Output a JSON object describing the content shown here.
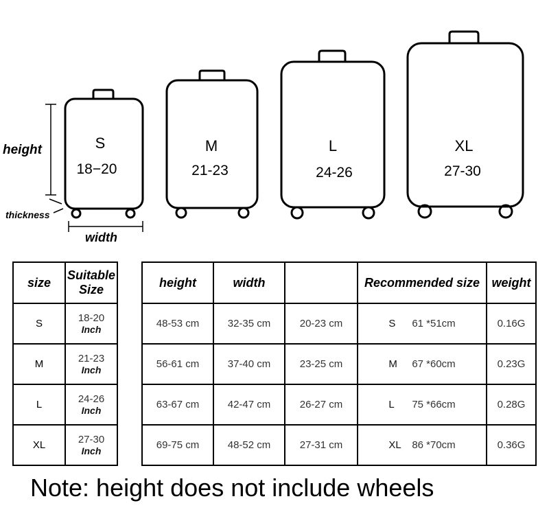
{
  "dimension_labels": {
    "height": "height",
    "thickness": "thickness",
    "width": "width"
  },
  "suitcases": [
    {
      "size": "S",
      "range": "18−20"
    },
    {
      "size": "M",
      "range": "21-23"
    },
    {
      "size": "L",
      "range": "24-26"
    },
    {
      "size": "XL",
      "range": "27-30"
    }
  ],
  "table_left": {
    "headers": {
      "size": "size",
      "suitable_line1": "Suitable",
      "suitable_line2": "Size"
    },
    "rows": [
      {
        "size": "S",
        "range": "18-20",
        "unit": "Inch"
      },
      {
        "size": "M",
        "range": "21-23",
        "unit": "Inch"
      },
      {
        "size": "L",
        "range": "24-26",
        "unit": "Inch"
      },
      {
        "size": "XL",
        "range": "27-30",
        "unit": "Inch"
      }
    ]
  },
  "table_right": {
    "headers": {
      "height": "height",
      "width": "width",
      "blank": "",
      "recommended": "Recommended size",
      "weight": "weight"
    },
    "rows": [
      {
        "height": "48-53 cm",
        "width": "32-35 cm",
        "depth": "20-23 cm",
        "rec_size": "S",
        "rec_dims": "61 *51cm",
        "weight": "0.16G"
      },
      {
        "height": "56-61 cm",
        "width": "37-40 cm",
        "depth": "23-25 cm",
        "rec_size": "M",
        "rec_dims": "67 *60cm",
        "weight": "0.23G"
      },
      {
        "height": "63-67 cm",
        "width": "42-47 cm",
        "depth": "26-27 cm",
        "rec_size": "L",
        "rec_dims": "75 *66cm",
        "weight": "0.28G"
      },
      {
        "height": "69-75 cm",
        "width": "48-52 cm",
        "depth": "27-31 cm",
        "rec_size": "XL",
        "rec_dims": "86 *70cm",
        "weight": "0.36G"
      }
    ]
  },
  "note": "Note: height does not include wheels"
}
